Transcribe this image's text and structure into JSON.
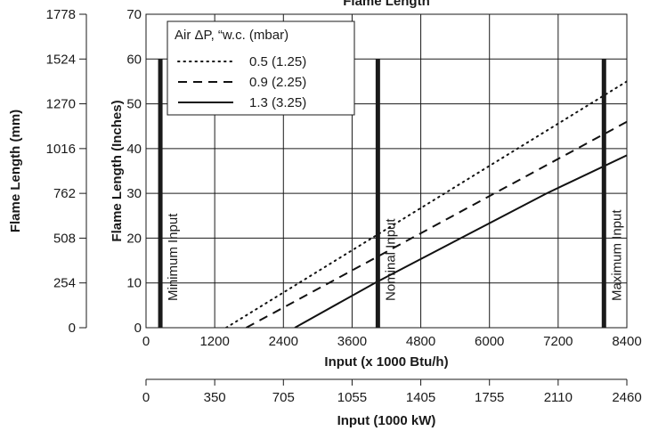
{
  "chart_data": {
    "type": "line",
    "title": "Flame Length",
    "xlabel": "Input (x 1000 Btu/h)",
    "ylabel": "Flame Length (Inches)",
    "xlim": [
      0,
      8400
    ],
    "ylim": [
      0,
      70
    ],
    "x_ticks": [
      0,
      1200,
      2400,
      3600,
      4800,
      6000,
      7200,
      8400
    ],
    "y_ticks": [
      0,
      10,
      20,
      30,
      40,
      50,
      60,
      70
    ],
    "secondary_y": {
      "label": "Flame Length (mm)",
      "ticks": [
        {
          "value": 0,
          "label": "0"
        },
        {
          "value": 10,
          "label": "254"
        },
        {
          "value": 20,
          "label": "508"
        },
        {
          "value": 30,
          "label": "762"
        },
        {
          "value": 40,
          "label": "1016"
        },
        {
          "value": 50,
          "label": "1270"
        },
        {
          "value": 60,
          "label": "1524"
        },
        {
          "value": 70,
          "label": "1778"
        }
      ]
    },
    "secondary_x": {
      "label": "Input (1000 kW)",
      "ticks": [
        {
          "value": 0,
          "label": "0"
        },
        {
          "value": 1200,
          "label": "350"
        },
        {
          "value": 2400,
          "label": "705"
        },
        {
          "value": 3600,
          "label": "1055"
        },
        {
          "value": 4800,
          "label": "1405"
        },
        {
          "value": 6000,
          "label": "1755"
        },
        {
          "value": 7200,
          "label": "2110"
        },
        {
          "value": 8400,
          "label": "2460"
        }
      ]
    },
    "legend": {
      "title": "Air ΔP, “w.c. (mbar)",
      "placement": "top-left"
    },
    "series": [
      {
        "name": "0.5 (1.25)",
        "style": "dotted",
        "x": [
          1400,
          8400
        ],
        "y": [
          0,
          55
        ]
      },
      {
        "name": "0.9 (2.25)",
        "style": "dashed",
        "x": [
          1750,
          8400
        ],
        "y": [
          0,
          46
        ]
      },
      {
        "name": "1.3 (3.25)",
        "style": "solid",
        "x": [
          2600,
          4000,
          5500,
          7000,
          8400
        ],
        "y": [
          0,
          10,
          20,
          30,
          38.5
        ]
      }
    ],
    "markers": [
      {
        "label": "Minimum Input",
        "x": 250,
        "y_top": 60
      },
      {
        "label": "Nominal Input",
        "x": 4050,
        "y_top": 60
      },
      {
        "label": "Maximum Input",
        "x": 8000,
        "y_top": 60
      }
    ],
    "grid": true
  }
}
